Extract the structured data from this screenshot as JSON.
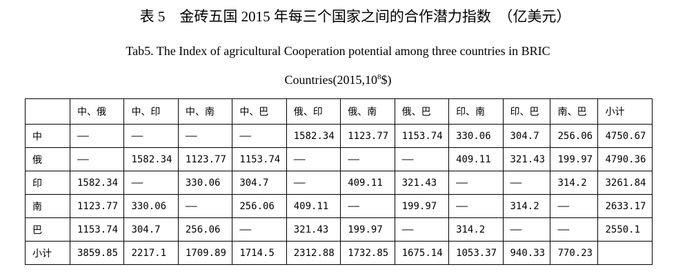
{
  "header": {
    "title": "表 5　金砖五国 2015 年每三个国家之间的合作潜力指数　（亿美元）",
    "subtitle_line1": "Tab5. The Index of agricultural Cooperation potential among three countries in BRIC",
    "subtitle_line2": {
      "before": "Countries(2015,10",
      "sup": "8",
      "after": "$)"
    }
  },
  "table": {
    "columns": [
      "中、俄",
      "中、印",
      "中、南",
      "中、巴",
      "俄、印",
      "俄、南",
      "俄、巴",
      "印、南",
      "印、巴",
      "南、巴",
      "小计"
    ],
    "rows": [
      {
        "label": "中",
        "cells": [
          "——",
          "——",
          "——",
          "——",
          "1582.34",
          "1123.77",
          "1153.74",
          "330.06",
          "304.7",
          "256.06",
          "4750.67"
        ]
      },
      {
        "label": "俄",
        "cells": [
          "——",
          "1582.34",
          "1123.77",
          "1153.74",
          "——",
          "——",
          "——",
          "409.11",
          "321.43",
          "199.97",
          "4790.36"
        ]
      },
      {
        "label": "印",
        "cells": [
          "1582.34",
          "——",
          "330.06",
          "304.7",
          "——",
          "409.11",
          "321.43",
          "——",
          "——",
          "314.2",
          "3261.84"
        ]
      },
      {
        "label": "南",
        "cells": [
          "1123.77",
          "330.06",
          "——",
          "256.06",
          "409.11",
          "——",
          "199.97",
          "——",
          "314.2",
          "——",
          "2633.17"
        ]
      },
      {
        "label": "巴",
        "cells": [
          "1153.74",
          "304.7",
          "256.06",
          "——",
          "321.43",
          "199.97",
          "——",
          "314.2",
          "——",
          "——",
          "2550.1"
        ]
      },
      {
        "label": "小计",
        "cells": [
          "3859.85",
          "2217.1",
          "1709.89",
          "1714.5",
          "2312.88",
          "1732.85",
          "1675.14",
          "1053.37",
          "940.33",
          "770.23"
        ]
      }
    ]
  }
}
